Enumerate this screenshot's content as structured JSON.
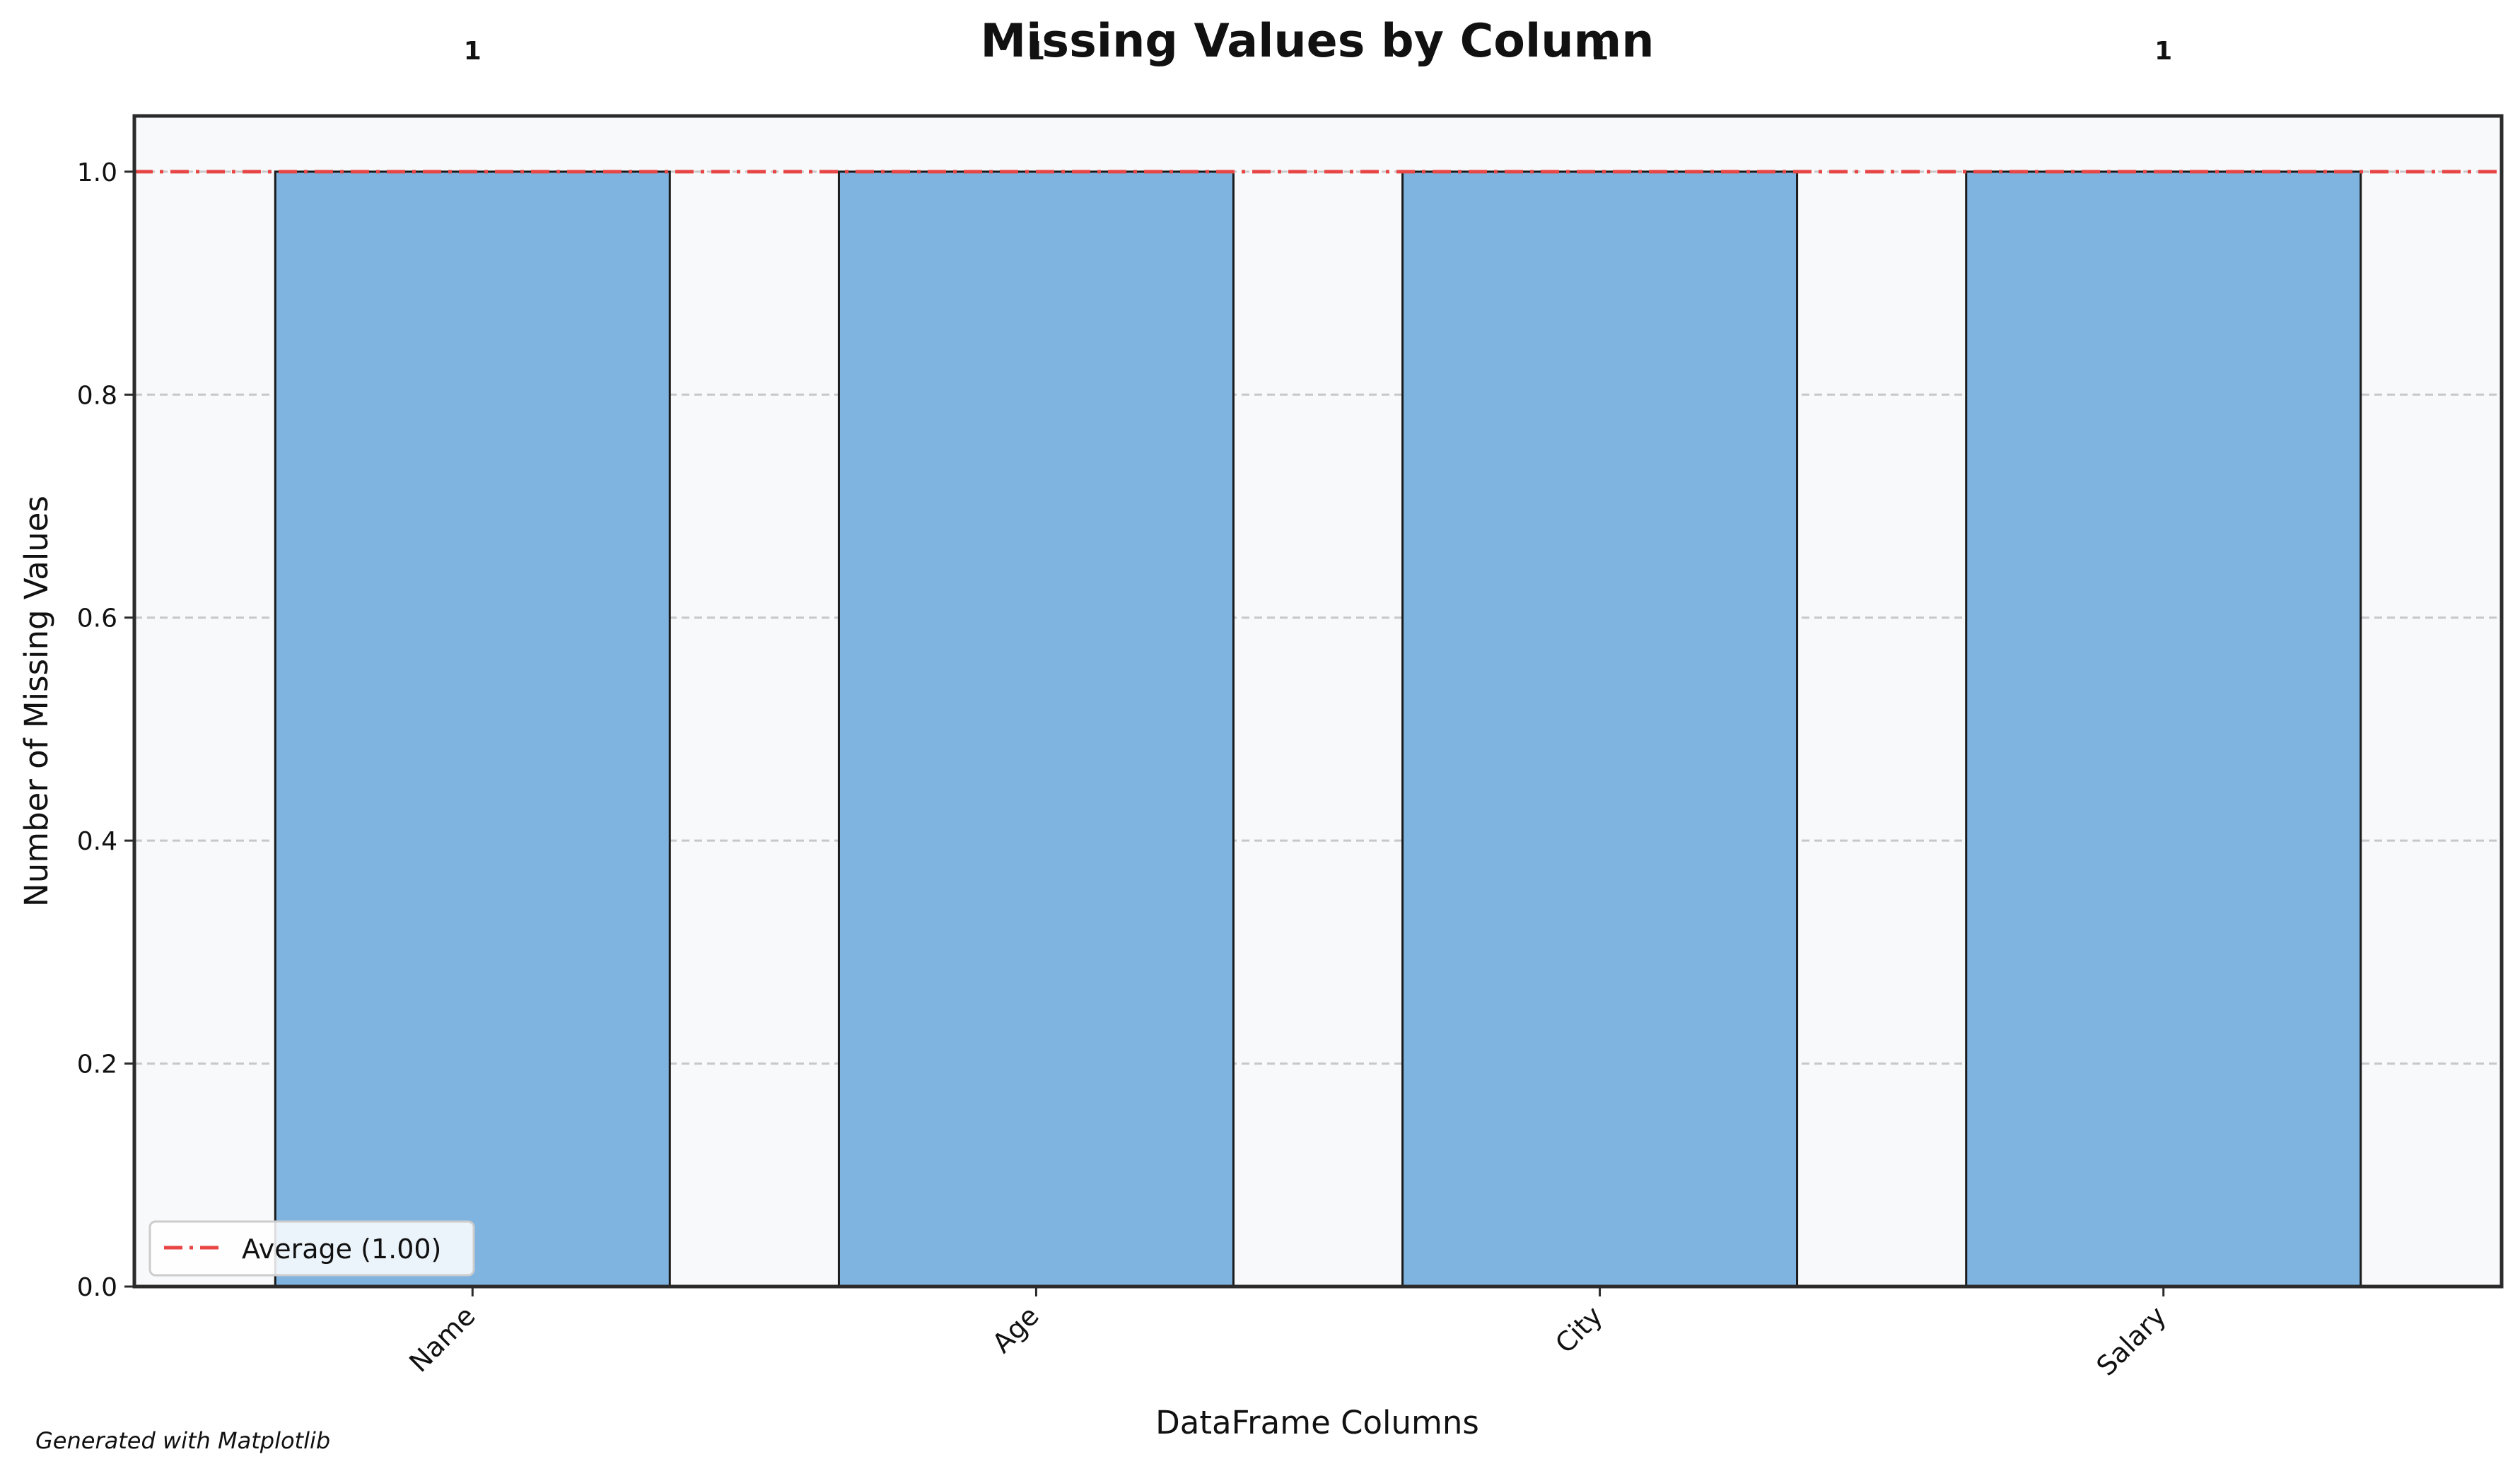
{
  "chart_data": {
    "type": "bar",
    "title": "Missing Values by Column",
    "xlabel": "DataFrame Columns",
    "ylabel": "Number of Missing Values",
    "categories": [
      "Name",
      "Age",
      "City",
      "Salary"
    ],
    "values": [
      1,
      1,
      1,
      1
    ],
    "value_labels": [
      "1",
      "1",
      "1",
      "1"
    ],
    "ylim": [
      0,
      1.05
    ],
    "yticks": [
      0.0,
      0.2,
      0.4,
      0.6,
      0.8,
      1.0
    ],
    "ytick_labels": [
      "0.0",
      "0.2",
      "0.4",
      "0.6",
      "0.8",
      "1.0"
    ],
    "grid": "y-dashed",
    "average": 1.0,
    "legend": {
      "position": "lower-left",
      "entries": [
        "Average (1.00)"
      ]
    },
    "colors": {
      "bar_fill": "#7fb3e0",
      "bar_edge": "#1a1a1a",
      "average_line": "#e84545",
      "plot_background": "#f7f9fb",
      "grid": "#c8c8c8"
    },
    "footnote": "Generated with Matplotlib"
  }
}
